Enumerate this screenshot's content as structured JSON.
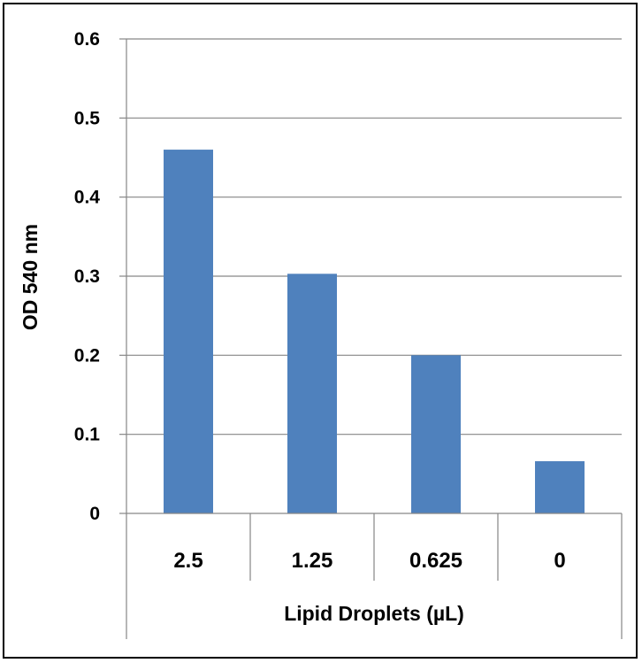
{
  "chart_data": {
    "type": "bar",
    "categories": [
      "2.5",
      "1.25",
      "0.625",
      "0"
    ],
    "values": [
      0.46,
      0.303,
      0.2,
      0.066
    ],
    "xlabel": "Lipid Droplets (µL)",
    "ylabel": "OD 540 nm",
    "ylim": [
      0,
      0.6
    ],
    "yticks": [
      "0",
      "0.1",
      "0.2",
      "0.3",
      "0.4",
      "0.5",
      "0.6"
    ],
    "grid": true,
    "legend": "none",
    "bar_color": "#4F81BD"
  }
}
